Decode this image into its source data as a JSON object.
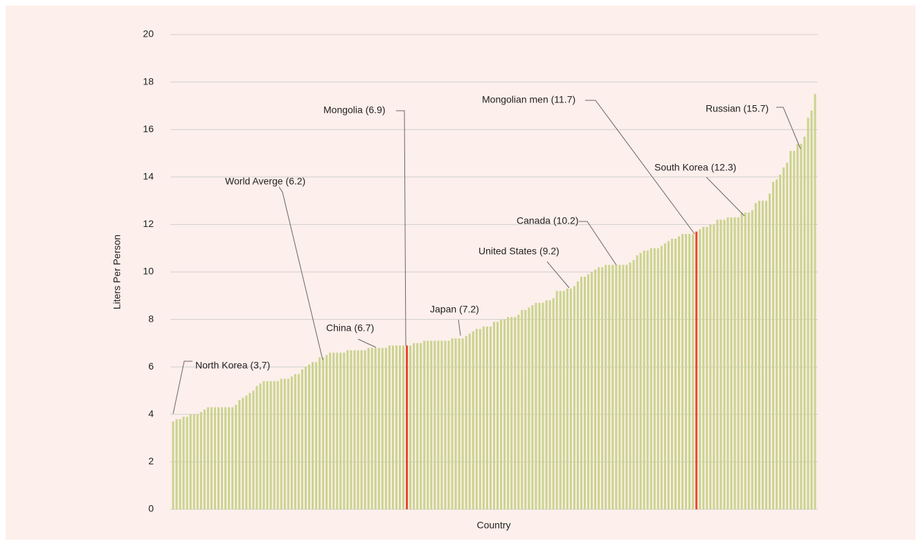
{
  "chart_data": {
    "type": "bar",
    "y_axis_label": "Liters Per Person",
    "x_axis_label": "Country",
    "categories": [
      null,
      null,
      null,
      null,
      null,
      null,
      null,
      null,
      null,
      null,
      null,
      null,
      null,
      null,
      null,
      null,
      null,
      null,
      null,
      null,
      null,
      null,
      null,
      null,
      null,
      null,
      null,
      null,
      null,
      null,
      null,
      null,
      null,
      null,
      null,
      null,
      null,
      null,
      null,
      null,
      null,
      null,
      null,
      null,
      null,
      null,
      null,
      null,
      null,
      null,
      null,
      null,
      null,
      null,
      null,
      null,
      null,
      null,
      null,
      null,
      null,
      null,
      null,
      null,
      null,
      null,
      null,
      null,
      null,
      null,
      null,
      null,
      null,
      null,
      null,
      null,
      null,
      null,
      null,
      null,
      null,
      null,
      null,
      null,
      null,
      null,
      null,
      null,
      null,
      null,
      null,
      null,
      null,
      null,
      null,
      null,
      null,
      null,
      null,
      null,
      null,
      null,
      null,
      null,
      null,
      null,
      null,
      null,
      null,
      null,
      null,
      null,
      null,
      null,
      null,
      null,
      null,
      null,
      null,
      null,
      null,
      null,
      null,
      null,
      null,
      null,
      null,
      null,
      null,
      null,
      null,
      null,
      null,
      null,
      null,
      null,
      null,
      null,
      null,
      null,
      null,
      null,
      null,
      null,
      null,
      null,
      null,
      null,
      null,
      null,
      null,
      null,
      null,
      null,
      null,
      null,
      null,
      null,
      null,
      null,
      null,
      null,
      null,
      null,
      null,
      null,
      null,
      null,
      null,
      null,
      null,
      null,
      null,
      null,
      null,
      null,
      null,
      null,
      null,
      null,
      null,
      null,
      null,
      null,
      null
    ],
    "values": [
      3.7,
      3.8,
      3.8,
      3.9,
      3.9,
      4.0,
      4.0,
      4.0,
      4.1,
      4.2,
      4.3,
      4.3,
      4.3,
      4.3,
      4.3,
      4.3,
      4.3,
      4.3,
      4.4,
      4.6,
      4.7,
      4.8,
      4.9,
      5.0,
      5.2,
      5.3,
      5.4,
      5.4,
      5.4,
      5.4,
      5.4,
      5.5,
      5.5,
      5.5,
      5.6,
      5.7,
      5.7,
      5.9,
      6.0,
      6.1,
      6.2,
      6.2,
      6.4,
      6.4,
      6.5,
      6.6,
      6.6,
      6.6,
      6.6,
      6.6,
      6.7,
      6.7,
      6.7,
      6.7,
      6.7,
      6.7,
      6.8,
      6.8,
      6.8,
      6.8,
      6.8,
      6.8,
      6.9,
      6.9,
      6.9,
      6.9,
      6.9,
      6.9,
      6.9,
      7.0,
      7.0,
      7.0,
      7.1,
      7.1,
      7.1,
      7.1,
      7.1,
      7.1,
      7.1,
      7.1,
      7.2,
      7.2,
      7.2,
      7.2,
      7.3,
      7.4,
      7.5,
      7.6,
      7.6,
      7.7,
      7.7,
      7.7,
      7.9,
      7.9,
      8.0,
      8.0,
      8.1,
      8.1,
      8.1,
      8.2,
      8.4,
      8.4,
      8.5,
      8.6,
      8.7,
      8.7,
      8.7,
      8.8,
      8.8,
      8.9,
      9.2,
      9.2,
      9.2,
      9.3,
      9.3,
      9.4,
      9.6,
      9.8,
      9.8,
      9.9,
      10.0,
      10.1,
      10.2,
      10.2,
      10.3,
      10.3,
      10.3,
      10.3,
      10.3,
      10.3,
      10.3,
      10.4,
      10.5,
      10.7,
      10.8,
      10.9,
      10.9,
      11.0,
      11.0,
      11.0,
      11.1,
      11.2,
      11.3,
      11.4,
      11.4,
      11.5,
      11.6,
      11.6,
      11.6,
      11.6,
      11.7,
      11.8,
      11.9,
      11.9,
      12.0,
      12.0,
      12.2,
      12.2,
      12.2,
      12.3,
      12.3,
      12.3,
      12.3,
      12.5,
      12.5,
      12.5,
      12.6,
      12.9,
      13.0,
      13.0,
      13.0,
      13.3,
      13.8,
      13.9,
      14.1,
      14.4,
      14.6,
      15.1,
      15.1,
      15.4,
      15.4,
      15.7,
      16.5,
      16.8,
      17.5
    ],
    "color": "#c9d48d",
    "highlight_color": "#e8472a",
    "highlighted": [
      67,
      150
    ],
    "ylim": [
      0,
      20
    ],
    "yticks": [
      0,
      2,
      4,
      6,
      8,
      10,
      12,
      14,
      16,
      18,
      20
    ],
    "grid": true,
    "annotations": [
      "North Korea (3,7)",
      "World Averge (6.2)",
      "China (6.7)",
      "Mongolia (6.9)",
      "Japan (7.2)",
      "United States (9.2)",
      "Canada (10.2)",
      "Mongolian men (11.7)",
      "South Korea (12.3)",
      "Russian (15.7)"
    ]
  }
}
